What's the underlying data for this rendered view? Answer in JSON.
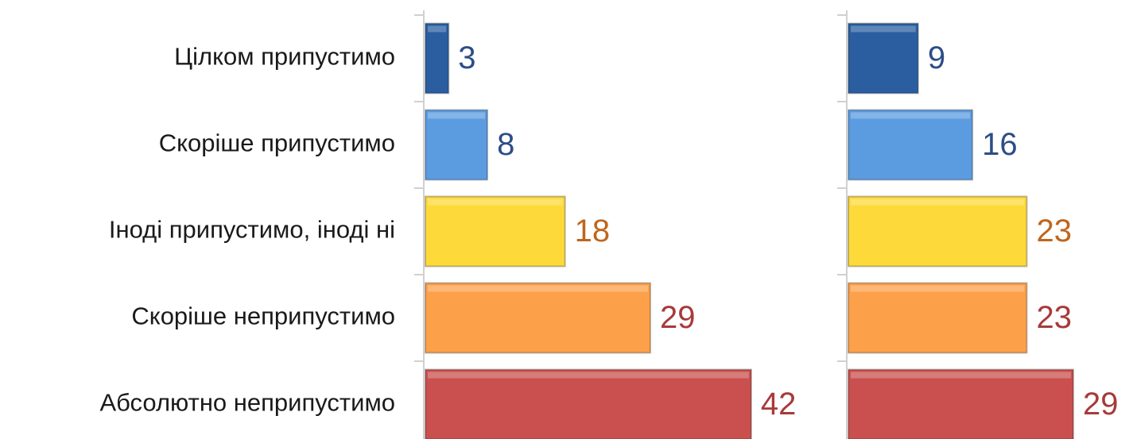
{
  "chart_data": {
    "type": "bar",
    "orientation": "horizontal",
    "categories": [
      "Цілком припустимо",
      "Скоріше припустимо",
      "Іноді припустимо, іноді ні",
      "Скоріше неприпустимо",
      "Абсолютно неприпустимо"
    ],
    "series": [
      {
        "values": [
          3,
          8,
          18,
          29,
          42
        ]
      },
      {
        "values": [
          9,
          16,
          23,
          23,
          29
        ]
      }
    ],
    "colors": [
      "#2a5ea0",
      "#5b9be0",
      "#fdd93a",
      "#fca04a",
      "#c9504e"
    ],
    "label_colors": [
      "#2c4d87",
      "#2c4d87",
      "#c0651b",
      "#a83a3a",
      "#a83a3a"
    ]
  }
}
